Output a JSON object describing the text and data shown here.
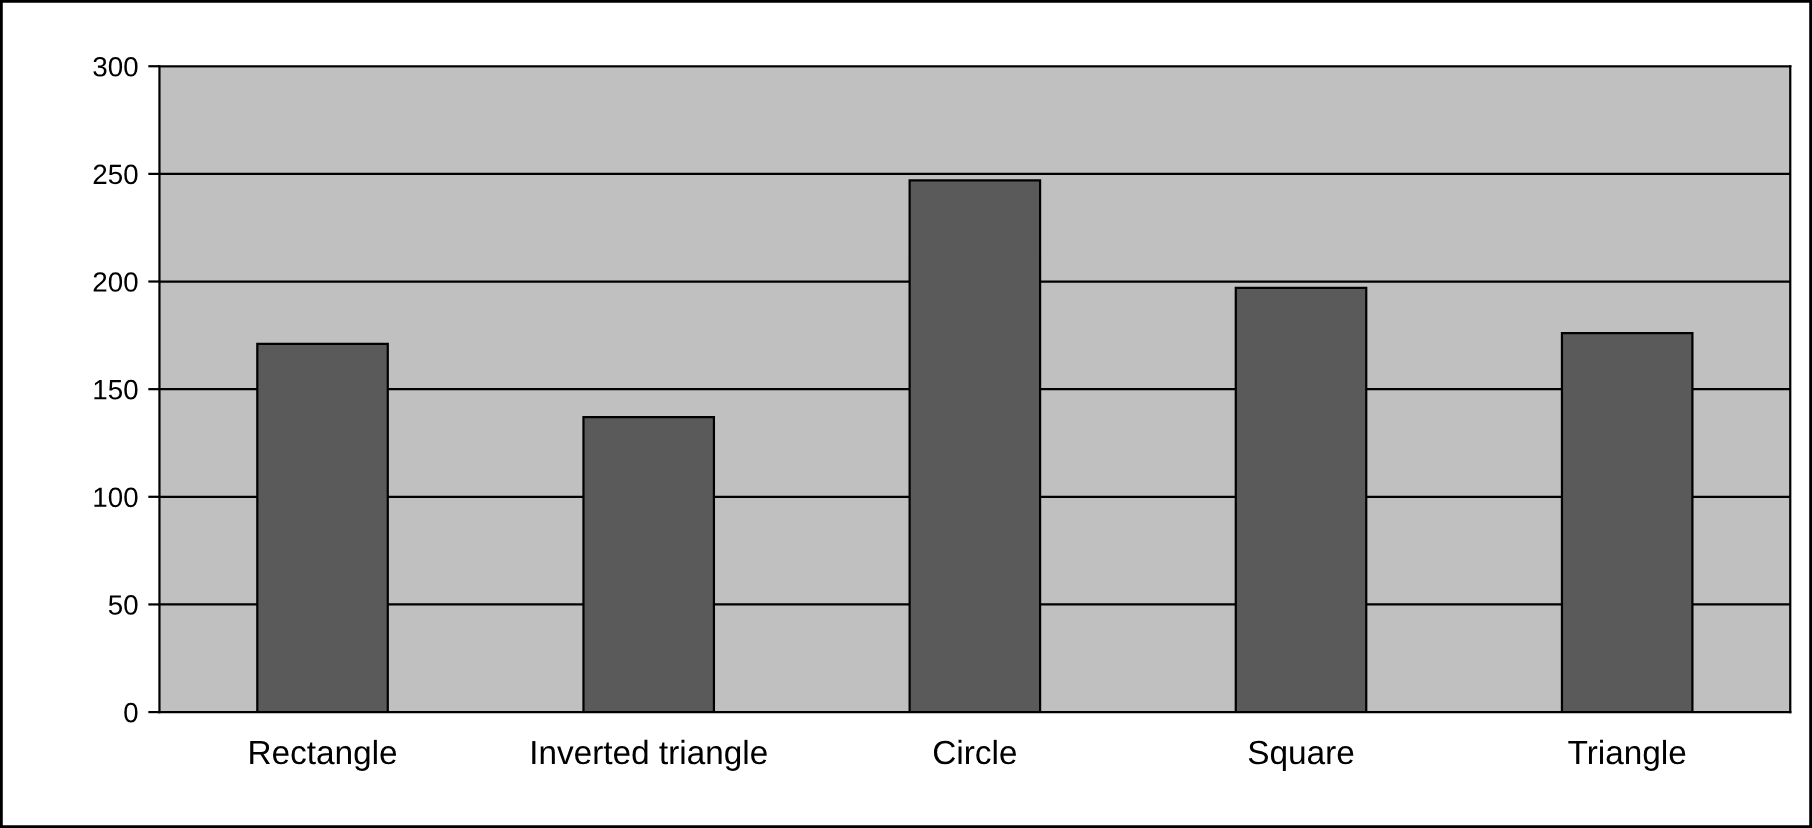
{
  "chart_data": {
    "type": "bar",
    "categories": [
      "Rectangle",
      "Inverted triangle",
      "Circle",
      "Square",
      "Triangle"
    ],
    "values": [
      171,
      137,
      247,
      197,
      176
    ],
    "color": "#5a5a5a",
    "ylim": [
      0,
      300
    ],
    "yticks": [
      0,
      50,
      100,
      150,
      200,
      250,
      300
    ],
    "grid": "y",
    "legend": false
  }
}
